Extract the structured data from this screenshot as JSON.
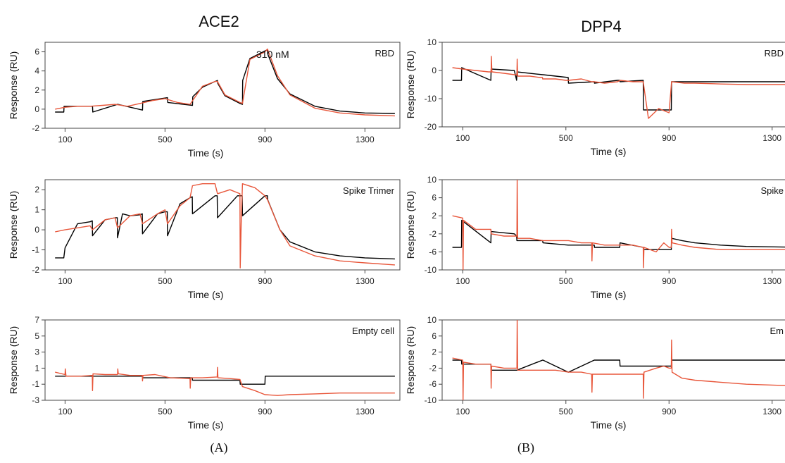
{
  "figure": {
    "column_titles": [
      "ACE2",
      "DPP4"
    ],
    "subfigure_labels": [
      "(A)",
      "(B)"
    ],
    "series_colors": {
      "model": "#000000",
      "measured": "#e8563a"
    }
  },
  "chart_data": [
    {
      "type": "line",
      "column": "ACE2",
      "panel_label": "RBD",
      "annotation": "310 nM",
      "xlabel": "Time (s)",
      "ylabel": "Response (RU)",
      "xlim": [
        20,
        1440
      ],
      "ylim": [
        -2,
        7
      ],
      "xticks": [
        100,
        500,
        900,
        1300
      ],
      "yticks": [
        -2,
        0,
        2,
        4,
        6
      ],
      "series": [
        {
          "color": "#000000",
          "x": [
            60,
            95,
            96,
            210,
            211,
            310,
            311,
            410,
            411,
            510,
            511,
            610,
            611,
            650,
            700,
            710,
            711,
            740,
            800,
            810,
            811,
            840,
            900,
            910,
            911,
            950,
            1000,
            1100,
            1200,
            1300,
            1420
          ],
          "y": [
            -0.3,
            -0.3,
            0.3,
            0.3,
            -0.3,
            0.5,
            0.5,
            -0.1,
            0.8,
            1.2,
            0.7,
            0.4,
            1.3,
            2.3,
            2.9,
            3.0,
            2.7,
            1.4,
            0.6,
            0.5,
            3.0,
            5.3,
            6.1,
            6.2,
            5.8,
            3.2,
            1.6,
            0.3,
            -0.2,
            -0.4,
            -0.45
          ]
        },
        {
          "color": "#e8563a",
          "x": [
            60,
            100,
            150,
            200,
            250,
            300,
            350,
            400,
            450,
            500,
            550,
            600,
            650,
            700,
            710,
            740,
            800,
            810,
            840,
            900,
            910,
            950,
            1000,
            1100,
            1200,
            1300,
            1420
          ],
          "y": [
            0.0,
            0.2,
            0.3,
            0.3,
            0.4,
            0.5,
            0.3,
            0.6,
            0.9,
            1.1,
            0.7,
            0.5,
            2.4,
            2.9,
            2.9,
            1.5,
            0.7,
            0.6,
            5.2,
            6.0,
            6.3,
            3.5,
            1.5,
            0.1,
            -0.4,
            -0.6,
            -0.7
          ]
        }
      ]
    },
    {
      "type": "line",
      "column": "ACE2",
      "panel_label": "Spike Trimer",
      "xlabel": "Time (s)",
      "ylabel": "Response (RU)",
      "xlim": [
        20,
        1440
      ],
      "ylim": [
        -2,
        2.5
      ],
      "xticks": [
        100,
        500,
        900,
        1300
      ],
      "yticks": [
        -2,
        -1,
        0,
        1,
        2
      ],
      "series": [
        {
          "color": "#000000",
          "x": [
            60,
            95,
            100,
            150,
            200,
            209,
            210,
            260,
            300,
            309,
            310,
            330,
            360,
            400,
            409,
            410,
            470,
            500,
            509,
            510,
            560,
            600,
            609,
            610,
            700,
            709,
            710,
            790,
            800,
            809,
            810,
            900,
            910,
            911,
            960,
            1000,
            1100,
            1200,
            1300,
            1420
          ],
          "y": [
            -1.4,
            -1.4,
            -0.9,
            0.3,
            0.4,
            0.45,
            -0.3,
            0.5,
            0.6,
            0.6,
            -0.4,
            0.8,
            0.7,
            0.75,
            0.8,
            -0.2,
            0.8,
            0.9,
            0.9,
            -0.3,
            1.3,
            1.6,
            1.65,
            0.8,
            1.7,
            1.7,
            0.6,
            1.7,
            1.7,
            1.7,
            0.7,
            1.7,
            1.7,
            1.5,
            0.0,
            -0.6,
            -1.1,
            -1.3,
            -1.4,
            -1.45
          ]
        },
        {
          "color": "#e8563a",
          "x": [
            60,
            100,
            150,
            200,
            210,
            260,
            300,
            310,
            360,
            400,
            410,
            470,
            500,
            510,
            560,
            600,
            610,
            650,
            700,
            710,
            760,
            800,
            801,
            805,
            810,
            860,
            900,
            910,
            960,
            1000,
            1100,
            1200,
            1300,
            1420
          ],
          "y": [
            -0.1,
            0.0,
            0.1,
            0.2,
            0.0,
            0.5,
            0.6,
            0.1,
            0.7,
            0.8,
            0.3,
            0.8,
            1.0,
            0.3,
            1.2,
            1.6,
            2.2,
            2.3,
            2.3,
            1.8,
            2.0,
            1.8,
            -1.9,
            0.3,
            2.3,
            2.1,
            1.7,
            1.5,
            0.0,
            -0.8,
            -1.3,
            -1.55,
            -1.65,
            -1.75
          ]
        }
      ]
    },
    {
      "type": "line",
      "column": "ACE2",
      "panel_label": "Empty cell",
      "xlabel": "Time (s)",
      "ylabel": "Response (RU)",
      "xlim": [
        20,
        1440
      ],
      "ylim": [
        -3,
        7
      ],
      "xticks": [
        100,
        500,
        900,
        1300
      ],
      "yticks": [
        -3,
        -1,
        1,
        3,
        5,
        7
      ],
      "series": [
        {
          "color": "#000000",
          "x": [
            60,
            95,
            96,
            209,
            210,
            410,
            411,
            609,
            610,
            800,
            801,
            900,
            901,
            1420
          ],
          "y": [
            0.0,
            0.0,
            0.0,
            0.0,
            0.0,
            0.0,
            -0.2,
            -0.2,
            -0.5,
            -0.5,
            -1.0,
            -1.0,
            0.0,
            0.0
          ]
        },
        {
          "color": "#e8563a",
          "x": [
            60,
            100,
            101,
            104,
            160,
            209,
            210,
            212,
            260,
            310,
            311,
            313,
            360,
            409,
            410,
            412,
            460,
            520,
            600,
            601,
            603,
            650,
            709,
            710,
            712,
            760,
            800,
            810,
            860,
            900,
            950,
            1000,
            1100,
            1200,
            1300,
            1420
          ],
          "y": [
            0.5,
            0.2,
            0.9,
            0.0,
            0.0,
            0.1,
            -1.8,
            0.3,
            0.2,
            0.2,
            0.9,
            0.3,
            0.1,
            0.1,
            -0.6,
            0.1,
            0.2,
            -0.2,
            -0.3,
            -1.5,
            -0.2,
            -0.2,
            -0.1,
            1.1,
            -0.2,
            -0.3,
            -0.4,
            -1.3,
            -1.8,
            -2.3,
            -2.4,
            -2.3,
            -2.2,
            -2.1,
            -2.1,
            -2.1
          ]
        }
      ]
    },
    {
      "type": "line",
      "column": "DPP4",
      "panel_label": "RBD",
      "xlabel": "Time (s)",
      "ylabel": "Response (RU)",
      "xlim": [
        20,
        1440
      ],
      "ylim": [
        -20,
        10
      ],
      "xticks": [
        100,
        500,
        900,
        1300
      ],
      "yticks": [
        -20,
        -10,
        0,
        10
      ],
      "series": [
        {
          "color": "#000000",
          "x": [
            60,
            95,
            96,
            209,
            210,
            300,
            309,
            310,
            410,
            411,
            509,
            510,
            610,
            611,
            700,
            709,
            710,
            800,
            801,
            900,
            909,
            910,
            1420
          ],
          "y": [
            -3.5,
            -3.5,
            1.0,
            -3.5,
            0.5,
            0.0,
            -3.5,
            -0.5,
            -1.5,
            -1.5,
            -2.5,
            -4.5,
            -4.0,
            -4.5,
            -3.5,
            -3.5,
            -4.0,
            -3.5,
            -14.0,
            -14.0,
            -14.0,
            -4.0,
            -4.0
          ]
        },
        {
          "color": "#e8563a",
          "x": [
            60,
            100,
            150,
            200,
            210,
            211,
            213,
            260,
            300,
            310,
            311,
            313,
            360,
            400,
            409,
            410,
            460,
            500,
            510,
            560,
            600,
            610,
            650,
            700,
            710,
            760,
            800,
            820,
            860,
            900,
            910,
            960,
            1000,
            1100,
            1200,
            1420
          ],
          "y": [
            1.0,
            0.5,
            0.0,
            -0.5,
            -0.5,
            5.0,
            -0.5,
            -1.0,
            -1.5,
            -1.5,
            4.0,
            -2.0,
            -2.0,
            -2.5,
            -2.5,
            -3.0,
            -3.0,
            -3.5,
            -3.5,
            -3.0,
            -4.0,
            -4.0,
            -4.5,
            -4.0,
            -3.5,
            -4.0,
            -4.0,
            -17.0,
            -13.5,
            -15.0,
            -4.0,
            -4.5,
            -4.5,
            -4.8,
            -5.0,
            -5.0
          ]
        }
      ]
    },
    {
      "type": "line",
      "column": "DPP4",
      "panel_label": "Spike",
      "xlabel": "Time (s)",
      "ylabel": "Response (RU)",
      "xlim": [
        20,
        1440
      ],
      "ylim": [
        -10,
        10
      ],
      "xticks": [
        100,
        500,
        900,
        1300
      ],
      "yticks": [
        -10,
        -6,
        -2,
        2,
        6,
        10
      ],
      "series": [
        {
          "color": "#000000",
          "x": [
            60,
            95,
            96,
            209,
            210,
            300,
            309,
            310,
            410,
            411,
            509,
            510,
            610,
            611,
            700,
            709,
            710,
            800,
            801,
            900,
            909,
            910,
            950,
            1000,
            1100,
            1200,
            1420
          ],
          "y": [
            -5.0,
            -5.0,
            1.0,
            -4.0,
            -1.5,
            -2.0,
            -2.5,
            -3.5,
            -3.5,
            -4.0,
            -4.5,
            -4.5,
            -4.5,
            -5.0,
            -5.0,
            -5.0,
            -4.0,
            -5.0,
            -5.5,
            -5.5,
            -5.5,
            -3.0,
            -3.5,
            -4.0,
            -4.5,
            -4.8,
            -5.0
          ]
        },
        {
          "color": "#e8563a",
          "x": [
            60,
            100,
            101,
            103,
            150,
            209,
            210,
            260,
            310,
            311,
            313,
            360,
            410,
            460,
            510,
            560,
            600,
            601,
            603,
            650,
            700,
            760,
            800,
            801,
            803,
            850,
            880,
            900,
            909,
            910,
            912,
            950,
            1000,
            1100,
            1200,
            1420
          ],
          "y": [
            2.0,
            1.5,
            -10.0,
            1.0,
            -1.0,
            -1.0,
            -2.0,
            -2.5,
            -2.5,
            10.0,
            -3.0,
            -3.0,
            -3.5,
            -3.5,
            -3.5,
            -4.0,
            -4.0,
            -8.0,
            -4.0,
            -4.5,
            -4.5,
            -4.5,
            -5.0,
            -9.5,
            -5.0,
            -6.0,
            -4.0,
            -5.0,
            -5.0,
            -1.0,
            -4.0,
            -4.5,
            -5.0,
            -5.5,
            -5.5,
            -5.5
          ]
        }
      ]
    },
    {
      "type": "line",
      "column": "DPP4",
      "panel_label": "Em",
      "xlabel": "Time (s)",
      "ylabel": "Response (RU)",
      "xlim": [
        20,
        1440
      ],
      "ylim": [
        -10,
        10
      ],
      "xticks": [
        100,
        500,
        900,
        1300
      ],
      "yticks": [
        -10,
        -6,
        -2,
        2,
        6,
        10
      ],
      "series": [
        {
          "color": "#000000",
          "x": [
            60,
            95,
            96,
            209,
            210,
            300,
            309,
            310,
            410,
            411,
            509,
            510,
            610,
            611,
            700,
            709,
            710,
            800,
            801,
            900,
            909,
            910,
            1420
          ],
          "y": [
            0.0,
            0.0,
            -1.0,
            -1.0,
            -2.5,
            -2.5,
            -2.5,
            -2.5,
            0.0,
            0.0,
            -3.0,
            -3.0,
            0.0,
            0.0,
            0.0,
            0.0,
            -1.5,
            -1.5,
            -1.5,
            -1.5,
            -1.5,
            0.0,
            0.0
          ]
        },
        {
          "color": "#e8563a",
          "x": [
            60,
            100,
            101,
            103,
            150,
            209,
            210,
            212,
            260,
            310,
            311,
            313,
            360,
            410,
            460,
            510,
            560,
            600,
            601,
            603,
            650,
            700,
            760,
            800,
            801,
            803,
            850,
            880,
            900,
            909,
            910,
            912,
            950,
            1000,
            1100,
            1200,
            1420
          ],
          "y": [
            0.5,
            0.0,
            -10.0,
            -0.5,
            -1.0,
            -1.0,
            -7.0,
            -1.5,
            -2.0,
            -2.0,
            10.0,
            -2.5,
            -2.5,
            -2.5,
            -2.5,
            -3.0,
            -3.0,
            -3.5,
            -8.0,
            -3.5,
            -3.5,
            -3.5,
            -3.5,
            -3.5,
            -9.5,
            -3.0,
            -2.0,
            -1.5,
            -2.0,
            -2.0,
            5.0,
            -3.0,
            -4.5,
            -5.0,
            -5.5,
            -6.0,
            -6.5
          ]
        }
      ]
    }
  ]
}
